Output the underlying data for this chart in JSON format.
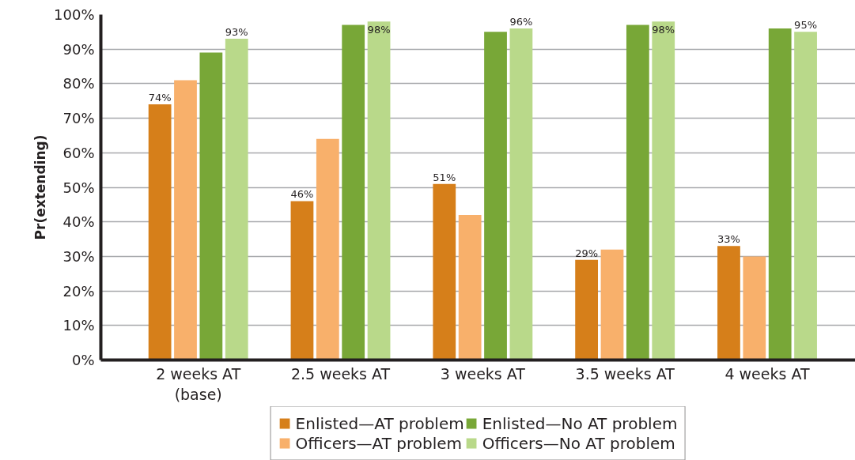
{
  "chart_data": {
    "type": "bar",
    "ylabel": "Pr(extending)",
    "categories": [
      "2 weeks AT\n(base)",
      "2.5 weeks AT",
      "3 weeks AT",
      "3.5 weeks AT",
      "4 weeks AT"
    ],
    "series": [
      {
        "name": "Enlisted—AT problem",
        "color": "#d67f1a",
        "values": [
          74,
          46,
          51,
          29,
          33
        ],
        "value_labels": [
          "74%",
          "46%",
          "51%",
          "29%",
          "33%"
        ]
      },
      {
        "name": "Officers—AT problem",
        "color": "#f8b06b",
        "values": [
          81,
          64,
          42,
          32,
          30
        ]
      },
      {
        "name": "Enlisted—No AT problem",
        "color": "#78a737",
        "values": [
          89,
          97,
          95,
          97,
          96
        ]
      },
      {
        "name": "Officers—No AT problem",
        "color": "#b9d98a",
        "values": [
          93,
          98,
          96,
          98,
          95
        ],
        "value_labels": [
          "93%",
          "98%",
          "96%",
          "98%",
          "95%"
        ]
      }
    ],
    "ylim": [
      0,
      100
    ],
    "yticks": [
      {
        "value": 0,
        "label": "0%"
      },
      {
        "value": 10,
        "label": "10%"
      },
      {
        "value": 20,
        "label": "20%"
      },
      {
        "value": 30,
        "label": "30%"
      },
      {
        "value": 40,
        "label": "40%"
      },
      {
        "value": 50,
        "label": "50%"
      },
      {
        "value": 60,
        "label": "60%"
      },
      {
        "value": 70,
        "label": "70%"
      },
      {
        "value": 80,
        "label": "80%"
      },
      {
        "value": 90,
        "label": "90%"
      },
      {
        "value": 100,
        "label": "100%"
      }
    ],
    "grid": "y",
    "legend": "bottom"
  }
}
